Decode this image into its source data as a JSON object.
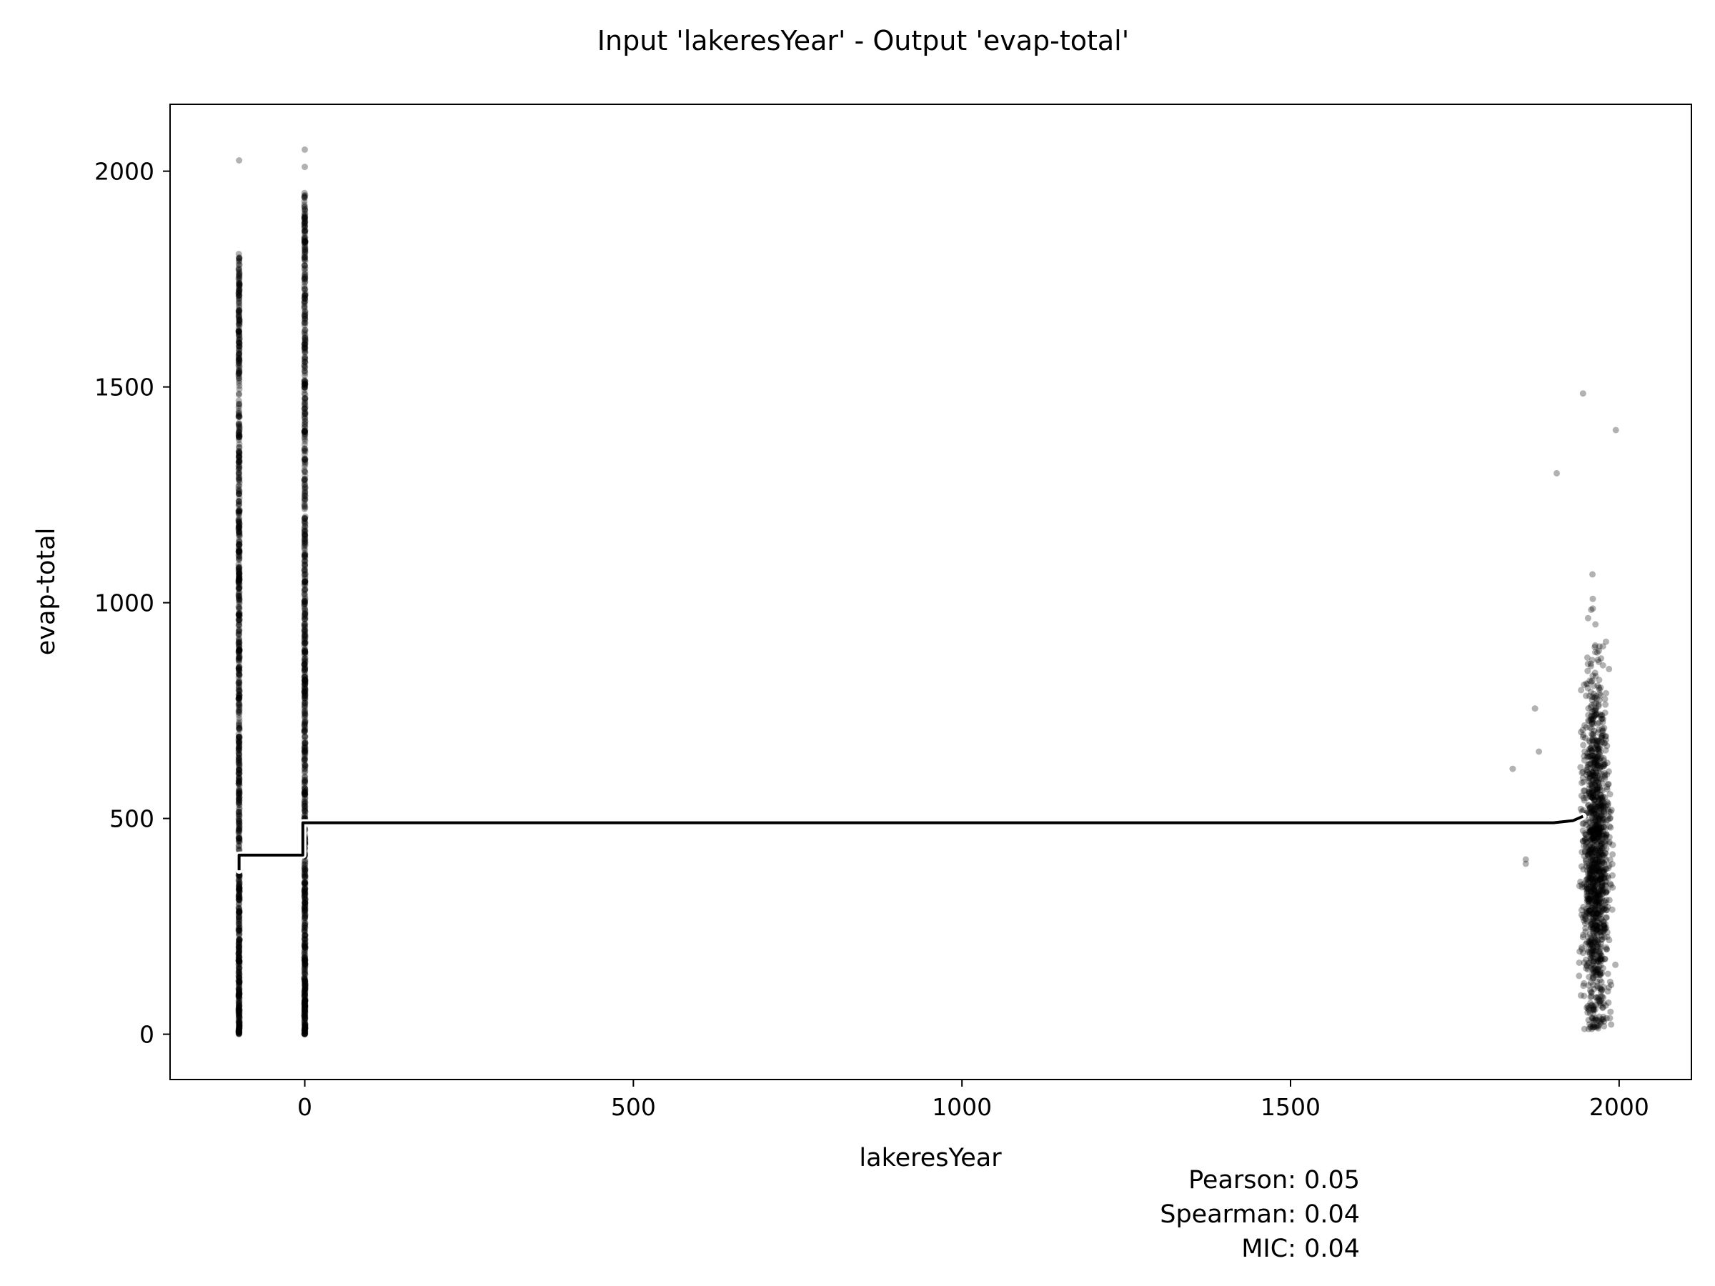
{
  "chart_data": {
    "type": "scatter",
    "title": "Input 'lakeresYear' - Output 'evap-total'",
    "xlabel": "lakeresYear",
    "ylabel": "evap-total",
    "xlim": [
      -205,
      2110
    ],
    "ylim": [
      -105,
      2155
    ],
    "xticks": [
      0,
      500,
      1000,
      1500,
      2000
    ],
    "yticks": [
      0,
      500,
      1000,
      1500,
      2000
    ],
    "grid": false,
    "stats": [
      {
        "label": "Pearson: 0.05"
      },
      {
        "label": "Spearman: 0.04"
      },
      {
        "label": "MIC: 0.04"
      }
    ],
    "clusters": [
      {
        "name": "x=-100",
        "x": -100,
        "x_spread": 0,
        "y_min": 0,
        "y_max": 1810,
        "outliers": [
          2025,
          1790,
          1760,
          1730,
          1700
        ]
      },
      {
        "name": "x=0",
        "x": 0,
        "x_spread": 0,
        "y_min": 0,
        "y_max": 1950,
        "outliers": [
          2050,
          2010
        ]
      },
      {
        "name": "x~1900-2000",
        "x": 1965,
        "x_spread": 25,
        "y_min": 10,
        "y_max": 1490
      }
    ],
    "trend_line": {
      "x": [
        -100,
        -100,
        -3,
        -3,
        1900,
        1930,
        1945
      ],
      "y": [
        380,
        415,
        415,
        490,
        490,
        495,
        505
      ]
    }
  }
}
